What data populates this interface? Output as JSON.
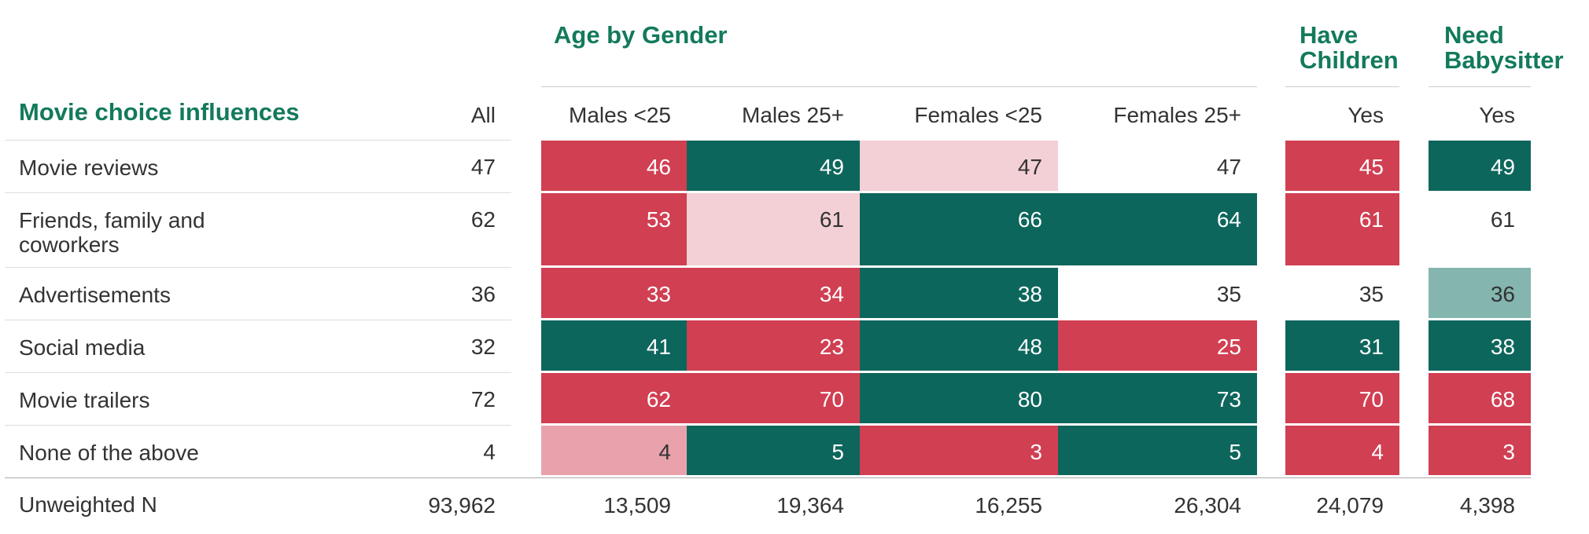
{
  "chart_data": {
    "type": "table",
    "title": "Movie choice influences",
    "group_headers": [
      "Age by Gender",
      "Have Children",
      "Need Babysitter"
    ],
    "columns": [
      "All",
      "Males <25",
      "Males 25+",
      "Females <25",
      "Females 25+",
      "Yes",
      "Yes"
    ],
    "rows": [
      {
        "label": "Movie reviews",
        "values": [
          47,
          46,
          49,
          47,
          47,
          45,
          49
        ],
        "fills": [
          "none",
          "red",
          "green",
          "light-pink",
          "none",
          "red",
          "green"
        ]
      },
      {
        "label": "Friends, family and coworkers",
        "label_lines": [
          "Friends, family and",
          "coworkers"
        ],
        "values": [
          62,
          53,
          61,
          66,
          64,
          61,
          61
        ],
        "fills": [
          "none",
          "red",
          "light-pink",
          "green",
          "green",
          "red",
          "none"
        ]
      },
      {
        "label": "Advertisements",
        "values": [
          36,
          33,
          34,
          38,
          35,
          35,
          36
        ],
        "fills": [
          "none",
          "red",
          "red",
          "green",
          "none",
          "none",
          "light-teal"
        ]
      },
      {
        "label": "Social media",
        "values": [
          32,
          41,
          23,
          48,
          25,
          31,
          38
        ],
        "fills": [
          "none",
          "green",
          "red",
          "green",
          "red",
          "green",
          "green"
        ]
      },
      {
        "label": "Movie trailers",
        "values": [
          72,
          62,
          70,
          80,
          73,
          70,
          68
        ],
        "fills": [
          "none",
          "red",
          "red",
          "green",
          "green",
          "red",
          "red"
        ]
      },
      {
        "label": "None of the above",
        "values": [
          4,
          4,
          5,
          3,
          5,
          4,
          3
        ],
        "fills": [
          "none",
          "medium-pink",
          "green",
          "red",
          "green",
          "red",
          "red"
        ]
      }
    ],
    "footer": {
      "label": "Unweighted N",
      "values": [
        "93,962",
        "13,509",
        "19,364",
        "16,255",
        "26,304",
        "24,079",
        "4,398"
      ]
    },
    "colors": {
      "red": "#d13f52",
      "green": "#0d665c",
      "light-pink": "#f3d0d5",
      "medium-pink": "#e9a2ab",
      "light-teal": "#84b5ae",
      "header-text": "#137a5c",
      "body-text": "#333333"
    }
  }
}
